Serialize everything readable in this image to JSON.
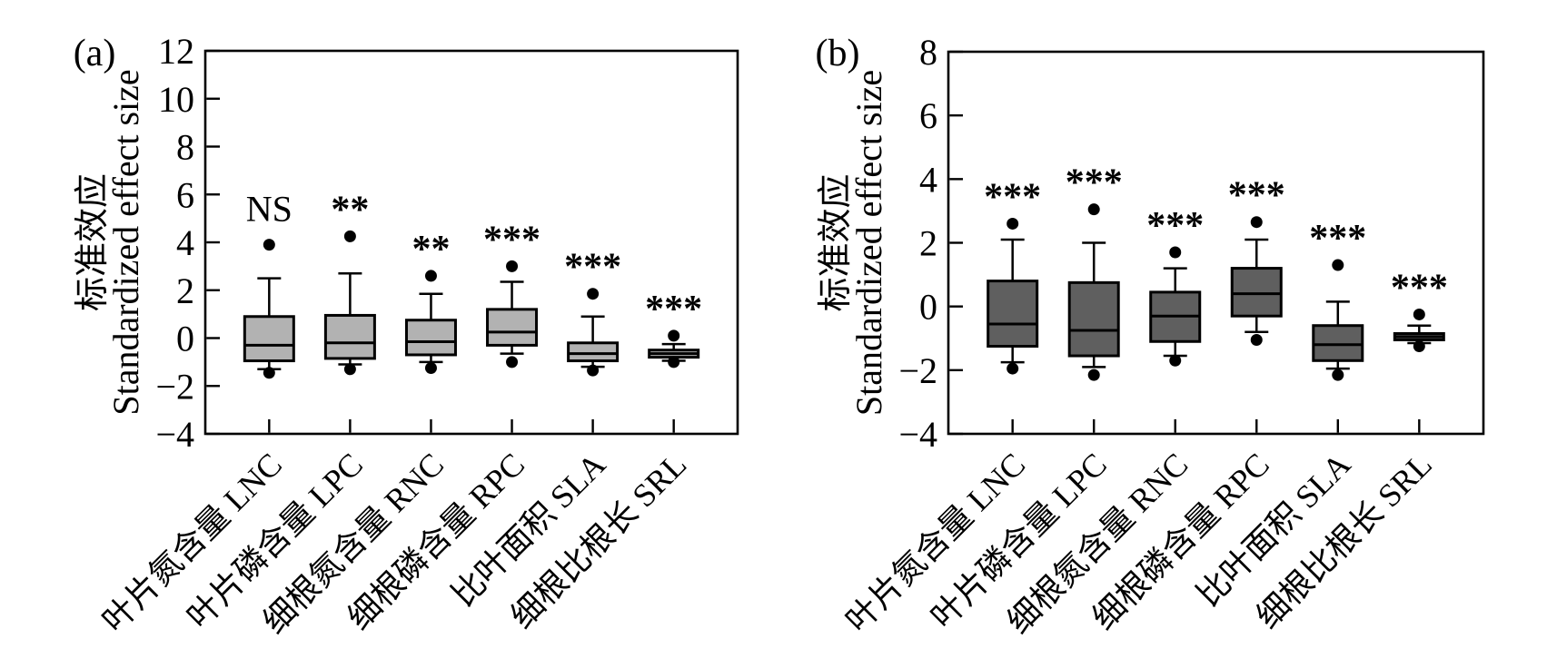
{
  "figure": {
    "background_color": "#ffffff",
    "line_color": "#000000",
    "panel_a_fill": "#b2b2b2",
    "panel_b_fill": "#5f5f5f"
  },
  "chart_data": [
    {
      "type": "box",
      "panel_label": "(a)",
      "ylabel_lines": [
        "标准效应",
        "Standardized effect size"
      ],
      "ylim": [
        -4,
        12
      ],
      "yticks": [
        12,
        10,
        8,
        6,
        4,
        2,
        0,
        -2,
        -4
      ],
      "grid": false,
      "legend": null,
      "box_fill": "#b2b2b2",
      "categories": [
        "叶片氮含量 LNC",
        "叶片磷含量 LPC",
        "细根氮含量 RNC",
        "细根磷含量 RPC",
        "比叶面积 SLA",
        "细根比根长 SRL"
      ],
      "boxes": [
        {
          "category": "叶片氮含量 LNC",
          "abbr": "LNC",
          "sig": "NS",
          "whisker_low": -1.3,
          "q1": -0.95,
          "median": -0.3,
          "q3": 0.9,
          "whisker_high": 2.5,
          "outliers_high": [
            3.9
          ],
          "outliers_low": [
            -1.45
          ]
        },
        {
          "category": "叶片磷含量 LPC",
          "abbr": "LPC",
          "sig": "**",
          "whisker_low": -1.1,
          "q1": -0.85,
          "median": -0.2,
          "q3": 0.95,
          "whisker_high": 2.7,
          "outliers_high": [
            4.25
          ],
          "outliers_low": [
            -1.3
          ]
        },
        {
          "category": "细根氮含量 RNC",
          "abbr": "RNC",
          "sig": "**",
          "whisker_low": -1.0,
          "q1": -0.7,
          "median": -0.15,
          "q3": 0.75,
          "whisker_high": 1.85,
          "outliers_high": [
            2.6
          ],
          "outliers_low": [
            -1.25
          ]
        },
        {
          "category": "细根磷含量 RPC",
          "abbr": "RPC",
          "sig": "***",
          "whisker_low": -0.65,
          "q1": -0.3,
          "median": 0.25,
          "q3": 1.2,
          "whisker_high": 2.35,
          "outliers_high": [
            3.0
          ],
          "outliers_low": [
            -1.0
          ]
        },
        {
          "category": "比叶面积 SLA",
          "abbr": "SLA",
          "sig": "***",
          "whisker_low": -1.2,
          "q1": -0.95,
          "median": -0.65,
          "q3": -0.2,
          "whisker_high": 0.9,
          "outliers_high": [
            1.85
          ],
          "outliers_low": [
            -1.35
          ]
        },
        {
          "category": "细根比根长 SRL",
          "abbr": "SRL",
          "sig": "***",
          "whisker_low": -0.95,
          "q1": -0.8,
          "median": -0.65,
          "q3": -0.5,
          "whisker_high": -0.25,
          "outliers_high": [
            0.1
          ],
          "outliers_low": [
            -1.0
          ]
        }
      ]
    },
    {
      "type": "box",
      "panel_label": "(b)",
      "ylabel_lines": [
        "标准效应",
        "Standardized effect size"
      ],
      "ylim": [
        -4,
        8
      ],
      "yticks": [
        8,
        6,
        4,
        2,
        0,
        -2,
        -4
      ],
      "grid": false,
      "legend": null,
      "box_fill": "#5f5f5f",
      "categories": [
        "叶片氮含量 LNC",
        "叶片磷含量 LPC",
        "细根氮含量 RNC",
        "细根磷含量 RPC",
        "比叶面积 SLA",
        "细根比根长 SRL"
      ],
      "boxes": [
        {
          "category": "叶片氮含量 LNC",
          "abbr": "LNC",
          "sig": "***",
          "whisker_low": -1.75,
          "q1": -1.25,
          "median": -0.55,
          "q3": 0.8,
          "whisker_high": 2.1,
          "outliers_high": [
            2.6
          ],
          "outliers_low": [
            -1.95
          ]
        },
        {
          "category": "叶片磷含量 LPC",
          "abbr": "LPC",
          "sig": "***",
          "whisker_low": -1.9,
          "q1": -1.55,
          "median": -0.75,
          "q3": 0.75,
          "whisker_high": 2.0,
          "outliers_high": [
            3.05
          ],
          "outliers_low": [
            -2.15
          ]
        },
        {
          "category": "细根氮含量 RNC",
          "abbr": "RNC",
          "sig": "***",
          "whisker_low": -1.55,
          "q1": -1.1,
          "median": -0.3,
          "q3": 0.45,
          "whisker_high": 1.2,
          "outliers_high": [
            1.7
          ],
          "outliers_low": [
            -1.7
          ]
        },
        {
          "category": "细根磷含量 RPC",
          "abbr": "RPC",
          "sig": "***",
          "whisker_low": -0.8,
          "q1": -0.3,
          "median": 0.4,
          "q3": 1.2,
          "whisker_high": 2.1,
          "outliers_high": [
            2.65
          ],
          "outliers_low": [
            -1.05
          ]
        },
        {
          "category": "比叶面积 SLA",
          "abbr": "SLA",
          "sig": "***",
          "whisker_low": -1.95,
          "q1": -1.7,
          "median": -1.2,
          "q3": -0.6,
          "whisker_high": 0.15,
          "outliers_high": [
            1.3
          ],
          "outliers_low": [
            -2.15
          ]
        },
        {
          "category": "细根比根长 SRL",
          "abbr": "SRL",
          "sig": "***",
          "whisker_low": -1.15,
          "q1": -1.05,
          "median": -0.95,
          "q3": -0.85,
          "whisker_high": -0.6,
          "outliers_high": [
            -0.25
          ],
          "outliers_low": [
            -1.25
          ]
        }
      ]
    }
  ]
}
